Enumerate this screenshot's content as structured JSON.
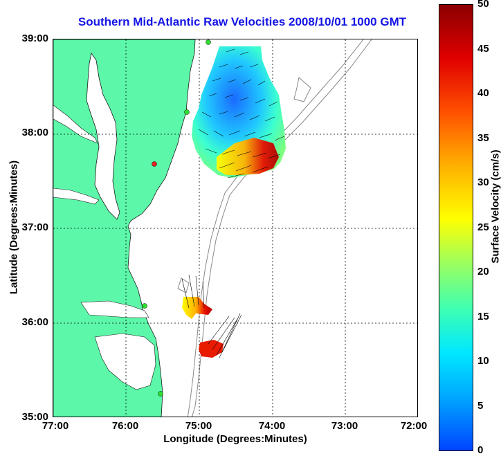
{
  "title": "Southern Mid-Atlantic Raw Velocities 2008/10/01 1000 GMT",
  "axes": {
    "xlabel": "Longitude (Degrees:Minutes)",
    "ylabel": "Latitude (Degrees:Minutes)",
    "x_ticks": [
      "77:00",
      "76:00",
      "75:00",
      "74:00",
      "73:00",
      "72:00"
    ],
    "y_ticks": [
      "39:00",
      "38:00",
      "37:00",
      "36:00",
      "35:00"
    ]
  },
  "colorbar": {
    "label": "Surface Velocity (cm/s)",
    "ticks": [
      "50",
      "45",
      "40",
      "35",
      "30",
      "25",
      "20",
      "15",
      "10",
      "5",
      "0"
    ],
    "range": [
      0,
      50
    ]
  },
  "colors": {
    "title": "#1414e6",
    "land": "#5cf7a8",
    "bathymetry": "#888888"
  }
}
